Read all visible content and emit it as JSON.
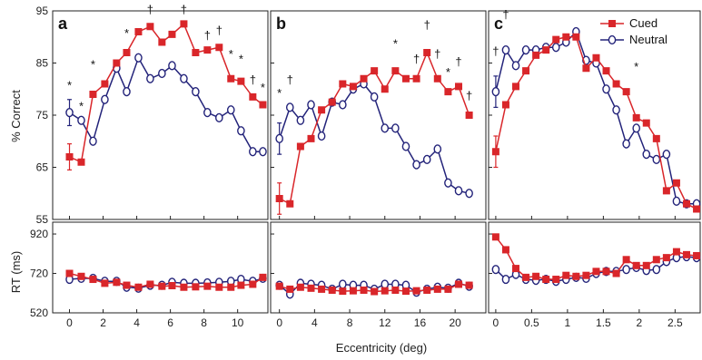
{
  "colors": {
    "cued": "#d9262a",
    "neutral": "#23237a",
    "frame": "#222222"
  },
  "shared": {
    "xlabel": "Eccentricity (deg)",
    "ylabel_top": "% Correct",
    "ylabel_bottom": "RT (ms)",
    "legend": [
      "Cued",
      "Neutral"
    ],
    "legend_position": "top-right"
  },
  "chart_data": [
    {
      "type": "line",
      "panel": "a",
      "ylim": [
        55,
        95
      ],
      "yticks": [
        55,
        65,
        75,
        85,
        95
      ],
      "xlim": [
        -1,
        11.8
      ],
      "xticks": [
        0,
        2,
        4,
        6,
        8,
        10
      ],
      "series": [
        {
          "name": "Cued",
          "marker": "square",
          "x": [
            0,
            0.7,
            1.4,
            2.1,
            2.8,
            3.4,
            4.1,
            4.8,
            5.5,
            6.1,
            6.8,
            7.5,
            8.2,
            8.9,
            9.6,
            10.2,
            10.9,
            11.5
          ],
          "y": [
            67,
            66,
            79,
            81,
            85,
            87,
            91,
            92,
            89,
            90.5,
            92.5,
            87,
            87.5,
            88,
            82,
            81.5,
            78.5,
            77
          ],
          "err": {
            "index": [
              0
            ],
            "size": [
              2.5
            ]
          }
        },
        {
          "name": "Neutral",
          "marker": "circle",
          "x": [
            0,
            0.7,
            1.4,
            2.1,
            2.8,
            3.4,
            4.1,
            4.8,
            5.5,
            6.1,
            6.8,
            7.5,
            8.2,
            8.9,
            9.6,
            10.2,
            10.9,
            11.5
          ],
          "y": [
            75.5,
            74,
            70,
            78,
            84,
            79.5,
            86,
            82,
            83,
            84.5,
            82,
            79.5,
            75.5,
            74.5,
            76,
            72,
            68,
            68
          ],
          "err": {
            "index": [
              0
            ],
            "size": [
              2.5
            ]
          }
        }
      ],
      "annotations": [
        {
          "text": "*",
          "x": 0,
          "y": 80
        },
        {
          "text": "*",
          "x": 0.7,
          "y": 76
        },
        {
          "text": "*",
          "x": 1.4,
          "y": 84
        },
        {
          "text": "*",
          "x": 3.4,
          "y": 90
        },
        {
          "text": "†",
          "x": 4.8,
          "y": 94.5
        },
        {
          "text": "†",
          "x": 6.8,
          "y": 94.5
        },
        {
          "text": "†",
          "x": 8.2,
          "y": 89.5
        },
        {
          "text": "†",
          "x": 8.9,
          "y": 90.5
        },
        {
          "text": "*",
          "x": 9.6,
          "y": 86
        },
        {
          "text": "*",
          "x": 10.2,
          "y": 85
        },
        {
          "text": "†",
          "x": 10.9,
          "y": 81
        },
        {
          "text": "*",
          "x": 11.5,
          "y": 79.5
        }
      ]
    },
    {
      "type": "line",
      "panel": "b",
      "ylim": [
        55,
        95
      ],
      "yticks": [
        55,
        65,
        75,
        85,
        95
      ],
      "xlim": [
        -1,
        23.5
      ],
      "xticks": [
        0,
        4,
        8,
        12,
        16,
        20
      ],
      "series": [
        {
          "name": "Cued",
          "marker": "square",
          "x": [
            0,
            1.2,
            2.4,
            3.6,
            4.8,
            6.0,
            7.2,
            8.4,
            9.6,
            10.8,
            12.0,
            13.2,
            14.4,
            15.6,
            16.8,
            18.0,
            19.2,
            20.4,
            21.6
          ],
          "y": [
            59,
            58,
            69,
            70.5,
            76,
            77.5,
            81,
            80.5,
            82,
            83.5,
            80,
            83.5,
            82,
            82,
            87,
            82,
            79.5,
            80.5,
            75
          ],
          "err": {
            "index": [
              0
            ],
            "size": [
              3
            ]
          }
        },
        {
          "name": "Neutral",
          "marker": "circle",
          "x": [
            0,
            1.2,
            2.4,
            3.6,
            4.8,
            6.0,
            7.2,
            8.4,
            9.6,
            10.8,
            12.0,
            13.2,
            14.4,
            15.6,
            16.8,
            18.0,
            19.2,
            20.4,
            21.6
          ],
          "y": [
            70.5,
            76.5,
            74,
            77,
            71,
            77.5,
            77,
            80,
            81,
            78.5,
            72.5,
            72.5,
            69,
            65.5,
            66.5,
            68.5,
            62,
            60.5,
            60
          ],
          "err": {
            "index": [
              0
            ],
            "size": [
              3
            ]
          }
        }
      ],
      "annotations": [
        {
          "text": "*",
          "x": 0,
          "y": 78.5
        },
        {
          "text": "†",
          "x": 1.2,
          "y": 81
        },
        {
          "text": "*",
          "x": 13.2,
          "y": 88
        },
        {
          "text": "†",
          "x": 15.6,
          "y": 85
        },
        {
          "text": "†",
          "x": 16.8,
          "y": 91.5
        },
        {
          "text": "†",
          "x": 18.0,
          "y": 86
        },
        {
          "text": "*",
          "x": 19.2,
          "y": 82.5
        },
        {
          "text": "†",
          "x": 20.4,
          "y": 84.5
        },
        {
          "text": "†",
          "x": 21.6,
          "y": 78
        }
      ]
    },
    {
      "type": "line",
      "panel": "c",
      "ylim": [
        55,
        95
      ],
      "yticks": [
        55,
        65,
        75,
        85,
        95
      ],
      "xlim": [
        -0.1,
        2.85
      ],
      "xticks": [
        0,
        0.5,
        1,
        1.5,
        2,
        2.5
      ],
      "series": [
        {
          "name": "Cued",
          "marker": "square",
          "x": [
            0,
            0.14,
            0.28,
            0.42,
            0.56,
            0.7,
            0.84,
            0.98,
            1.12,
            1.26,
            1.4,
            1.54,
            1.68,
            1.82,
            1.96,
            2.1,
            2.24,
            2.38,
            2.52,
            2.66,
            2.8
          ],
          "y": [
            68,
            77,
            80.5,
            83.5,
            86.5,
            87.5,
            89.5,
            90,
            90,
            84,
            86,
            83.5,
            81,
            79.5,
            74.5,
            73.5,
            70.5,
            60.5,
            62,
            58,
            57
          ],
          "err": {
            "index": [
              0
            ],
            "size": [
              3
            ]
          }
        },
        {
          "name": "Neutral",
          "marker": "circle",
          "x": [
            0,
            0.14,
            0.28,
            0.42,
            0.56,
            0.7,
            0.84,
            0.98,
            1.12,
            1.26,
            1.4,
            1.54,
            1.68,
            1.82,
            1.96,
            2.1,
            2.24,
            2.38,
            2.52,
            2.66,
            2.8
          ],
          "y": [
            79.5,
            87.5,
            84.5,
            87.5,
            87.5,
            88,
            88,
            89,
            91,
            85.5,
            85,
            80,
            76,
            69.5,
            72.5,
            67.5,
            66.5,
            67.5,
            58.5,
            58,
            58
          ],
          "err": {
            "index": [
              0
            ],
            "size": [
              3
            ]
          }
        }
      ],
      "annotations": [
        {
          "text": "†",
          "x": 0,
          "y": 86.5
        },
        {
          "text": "†",
          "x": 0.14,
          "y": 93.5
        },
        {
          "text": "*",
          "x": 1.96,
          "y": 83.5
        }
      ]
    },
    {
      "type": "line",
      "panel": "a-rt",
      "ylim": [
        520,
        980
      ],
      "yticks": [
        520,
        720,
        920
      ],
      "xlim": [
        -1,
        11.8
      ],
      "xticks": [
        0,
        2,
        4,
        6,
        8,
        10
      ],
      "series": [
        {
          "name": "Cued",
          "marker": "square",
          "x": [
            0,
            0.7,
            1.4,
            2.1,
            2.8,
            3.4,
            4.1,
            4.8,
            5.5,
            6.1,
            6.8,
            7.5,
            8.2,
            8.9,
            9.6,
            10.2,
            10.9,
            11.5
          ],
          "y": [
            720,
            705,
            690,
            670,
            675,
            660,
            650,
            665,
            655,
            658,
            650,
            652,
            655,
            650,
            650,
            660,
            665,
            700
          ]
        },
        {
          "name": "Neutral",
          "marker": "circle",
          "x": [
            0,
            0.7,
            1.4,
            2.1,
            2.8,
            3.4,
            4.1,
            4.8,
            5.5,
            6.1,
            6.8,
            7.5,
            8.2,
            8.9,
            9.6,
            10.2,
            10.9,
            11.5
          ],
          "y": [
            690,
            695,
            695,
            680,
            680,
            650,
            645,
            660,
            660,
            675,
            670,
            670,
            672,
            675,
            680,
            690,
            680,
            695
          ]
        }
      ]
    },
    {
      "type": "line",
      "panel": "b-rt",
      "ylim": [
        520,
        980
      ],
      "yticks": [
        520,
        720,
        920
      ],
      "xlim": [
        -1,
        23.5
      ],
      "xticks": [
        0,
        4,
        8,
        12,
        16,
        20
      ],
      "series": [
        {
          "name": "Cued",
          "marker": "square",
          "x": [
            0,
            1.2,
            2.4,
            3.6,
            4.8,
            6.0,
            7.2,
            8.4,
            9.6,
            10.8,
            12.0,
            13.2,
            14.4,
            15.6,
            16.8,
            18.0,
            19.2,
            20.4,
            21.6
          ],
          "y": [
            655,
            640,
            650,
            645,
            640,
            635,
            630,
            632,
            635,
            628,
            632,
            635,
            630,
            632,
            635,
            640,
            640,
            665,
            660
          ]
        },
        {
          "name": "Neutral",
          "marker": "circle",
          "x": [
            0,
            1.2,
            2.4,
            3.6,
            4.8,
            6.0,
            7.2,
            8.4,
            9.6,
            10.8,
            12.0,
            13.2,
            14.4,
            15.6,
            16.8,
            18.0,
            19.2,
            20.4,
            21.6
          ],
          "y": [
            660,
            615,
            670,
            665,
            660,
            640,
            665,
            660,
            660,
            640,
            665,
            665,
            660,
            625,
            640,
            650,
            645,
            670,
            655
          ]
        }
      ]
    },
    {
      "type": "line",
      "panel": "c-rt",
      "ylim": [
        520,
        980
      ],
      "yticks": [
        520,
        720,
        920
      ],
      "xlim": [
        -0.1,
        2.85
      ],
      "xticks": [
        0,
        0.5,
        1,
        1.5,
        2,
        2.5
      ],
      "series": [
        {
          "name": "Cued",
          "marker": "square",
          "x": [
            0,
            0.14,
            0.28,
            0.42,
            0.56,
            0.7,
            0.84,
            0.98,
            1.12,
            1.26,
            1.4,
            1.54,
            1.68,
            1.82,
            1.96,
            2.1,
            2.24,
            2.38,
            2.52,
            2.66,
            2.8
          ],
          "y": [
            905,
            840,
            745,
            700,
            705,
            690,
            690,
            710,
            705,
            710,
            730,
            730,
            720,
            790,
            760,
            760,
            790,
            800,
            830,
            815,
            810
          ]
        },
        {
          "name": "Neutral",
          "marker": "circle",
          "x": [
            0,
            0.14,
            0.28,
            0.42,
            0.56,
            0.7,
            0.84,
            0.98,
            1.12,
            1.26,
            1.4,
            1.54,
            1.68,
            1.82,
            1.96,
            2.1,
            2.24,
            2.38,
            2.52,
            2.66,
            2.8
          ],
          "y": [
            740,
            690,
            715,
            690,
            685,
            690,
            680,
            690,
            700,
            695,
            720,
            730,
            730,
            740,
            750,
            735,
            740,
            780,
            800,
            805,
            800
          ]
        }
      ]
    }
  ]
}
